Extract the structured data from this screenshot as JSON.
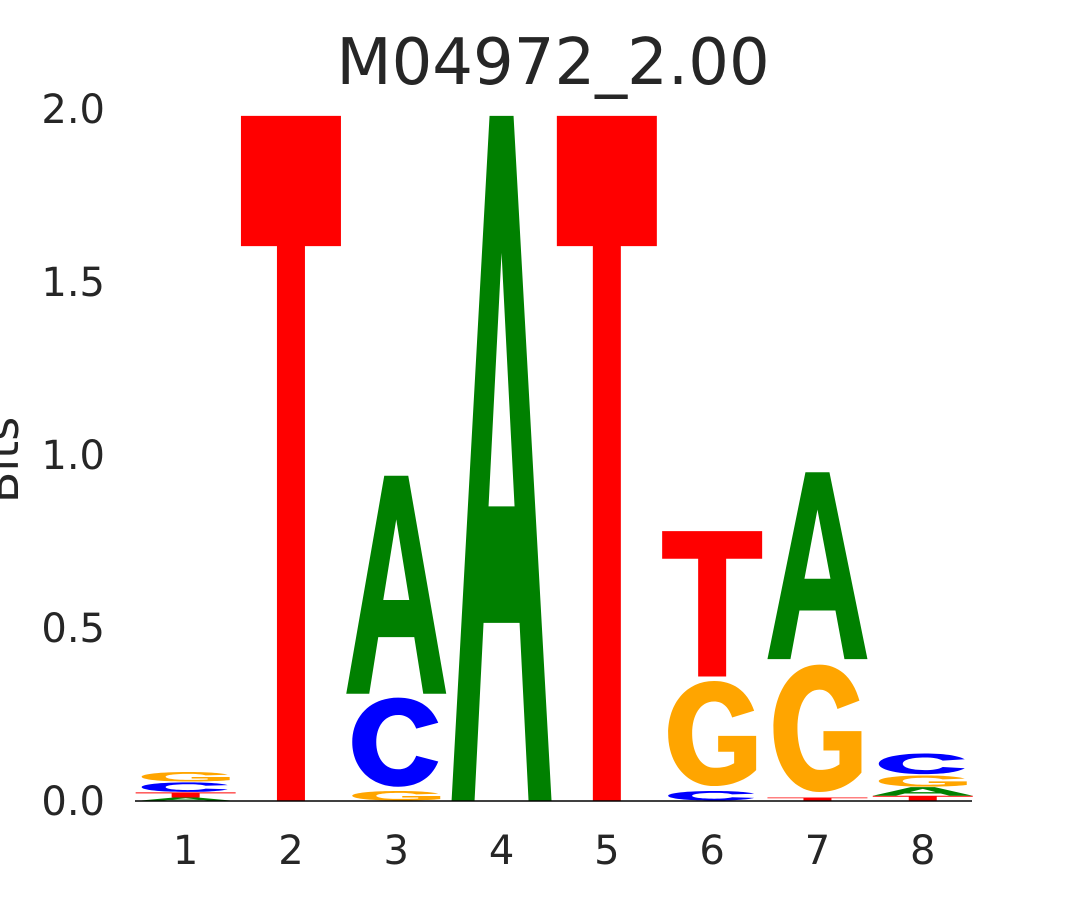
{
  "chart_data": {
    "type": "sequence-logo",
    "title": "M04972_2.00",
    "ylabel": "Bits",
    "xlabel": "",
    "ylim": [
      0,
      2.0
    ],
    "yticks": [
      "0.0",
      "0.5",
      "1.0",
      "1.5",
      "2.0"
    ],
    "ytick_values": [
      0,
      0.5,
      1.0,
      1.5,
      2.0
    ],
    "categories": [
      "1",
      "2",
      "3",
      "4",
      "5",
      "6",
      "7",
      "8"
    ],
    "colors": {
      "A": "#008000",
      "C": "#0000ff",
      "G": "#ffa500",
      "T": "#ff0000"
    },
    "positions": [
      {
        "pos": "1",
        "letters": [
          {
            "base": "A",
            "bits": 0.01
          },
          {
            "base": "T",
            "bits": 0.015
          },
          {
            "base": "C",
            "bits": 0.03
          },
          {
            "base": "G",
            "bits": 0.03
          }
        ]
      },
      {
        "pos": "2",
        "letters": [
          {
            "base": "T",
            "bits": 1.98
          }
        ]
      },
      {
        "pos": "3",
        "letters": [
          {
            "base": "G",
            "bits": 0.03
          },
          {
            "base": "C",
            "bits": 0.28
          },
          {
            "base": "A",
            "bits": 0.63
          }
        ]
      },
      {
        "pos": "4",
        "letters": [
          {
            "base": "A",
            "bits": 1.98
          }
        ]
      },
      {
        "pos": "5",
        "letters": [
          {
            "base": "T",
            "bits": 1.98
          }
        ]
      },
      {
        "pos": "6",
        "letters": [
          {
            "base": "C",
            "bits": 0.03
          },
          {
            "base": "G",
            "bits": 0.33
          },
          {
            "base": "T",
            "bits": 0.42
          }
        ]
      },
      {
        "pos": "7",
        "letters": [
          {
            "base": "T",
            "bits": 0.01
          },
          {
            "base": "G",
            "bits": 0.4
          },
          {
            "base": "A",
            "bits": 0.54
          }
        ]
      },
      {
        "pos": "8",
        "letters": [
          {
            "base": "T",
            "bits": 0.015
          },
          {
            "base": "A",
            "bits": 0.025
          },
          {
            "base": "G",
            "bits": 0.035
          },
          {
            "base": "C",
            "bits": 0.065
          }
        ]
      }
    ]
  }
}
